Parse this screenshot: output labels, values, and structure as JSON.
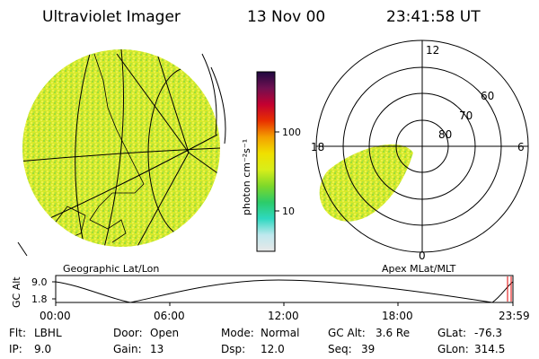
{
  "header": {
    "title": "Ultraviolet Imager",
    "date": "13 Nov 00",
    "time": "23:41:58 UT"
  },
  "left_panel": {
    "caption": "Geographic Lat/Lon"
  },
  "colorbar": {
    "label": "photon cm⁻²s⁻¹",
    "ticks": [
      "100",
      "10"
    ],
    "gradient_colors": [
      "#e8e8e8",
      "#bfe8ee",
      "#2ed8c0",
      "#2ccc6a",
      "#7ed82a",
      "#d8ee1a",
      "#f0e000",
      "#f4a000",
      "#e83000",
      "#c40030",
      "#701050",
      "#1e0840"
    ]
  },
  "right_panel": {
    "caption": "Apex MLat/MLT",
    "mlt_labels": {
      "top": "12",
      "right": "6",
      "left": "18",
      "bottom": "0"
    },
    "mlat_labels": [
      "60",
      "70",
      "80"
    ]
  },
  "timeline": {
    "axis_label": "GC Alt",
    "y_ticks": [
      "9.0",
      "1.8"
    ],
    "x_ticks": [
      "00:00",
      "06:00",
      "12:00",
      "18:00",
      "23:59"
    ]
  },
  "status": {
    "flt": {
      "label": "Flt:",
      "value": "LBHL"
    },
    "ip": {
      "label": "IP:",
      "value": "9.0"
    },
    "door": {
      "label": "Door:",
      "value": "Open"
    },
    "gain": {
      "label": "Gain:",
      "value": "13"
    },
    "mode": {
      "label": "Mode:",
      "value": "Normal"
    },
    "dsp": {
      "label": "Dsp:",
      "value": "12.0"
    },
    "gcalt": {
      "label": "GC Alt:",
      "value": "3.6 Re"
    },
    "seq": {
      "label": "Seq:",
      "value": "39"
    },
    "glat": {
      "label": "GLat:",
      "value": "-76.3"
    },
    "glon": {
      "label": "GLon:",
      "value": "314.5"
    }
  }
}
